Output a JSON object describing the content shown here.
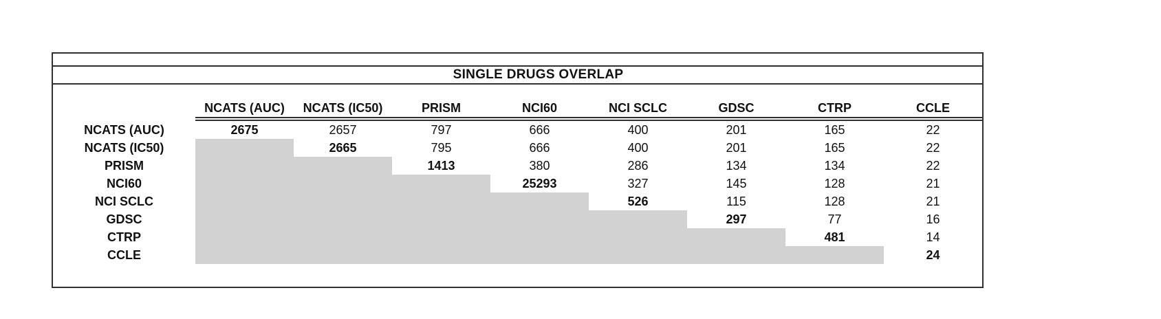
{
  "styles": {
    "background": "#ffffff",
    "line_color": "#303030",
    "text_color": "#111111",
    "shade_color": "#d2d2d2"
  },
  "chart_data": {
    "type": "table",
    "title": "SINGLE DRUGS OVERLAP",
    "columns": [
      "NCATS (AUC)",
      "NCATS (IC50)",
      "PRISM",
      "NCI60",
      "NCI SCLC",
      "GDSC",
      "CTRP",
      "CCLE"
    ],
    "rows": [
      {
        "label": "NCATS (AUC)",
        "values": [
          2675,
          2657,
          797,
          666,
          400,
          201,
          165,
          22
        ]
      },
      {
        "label": "NCATS (IC50)",
        "values": [
          null,
          2665,
          795,
          666,
          400,
          201,
          165,
          22
        ]
      },
      {
        "label": "PRISM",
        "values": [
          null,
          null,
          1413,
          380,
          286,
          134,
          134,
          22
        ]
      },
      {
        "label": "NCI60",
        "values": [
          null,
          null,
          null,
          25293,
          327,
          145,
          128,
          21
        ]
      },
      {
        "label": "NCI SCLC",
        "values": [
          null,
          null,
          null,
          null,
          526,
          115,
          128,
          21
        ]
      },
      {
        "label": "GDSC",
        "values": [
          null,
          null,
          null,
          null,
          null,
          297,
          77,
          16
        ]
      },
      {
        "label": "CTRP",
        "values": [
          null,
          null,
          null,
          null,
          null,
          null,
          481,
          14
        ]
      },
      {
        "label": "CCLE",
        "values": [
          null,
          null,
          null,
          null,
          null,
          null,
          null,
          24
        ]
      }
    ],
    "layout": {
      "diagonal_bold": true,
      "lower_triangle_shaded": true,
      "shade_color": "#d2d2d2",
      "header_rule": "double",
      "grid": "off"
    }
  }
}
